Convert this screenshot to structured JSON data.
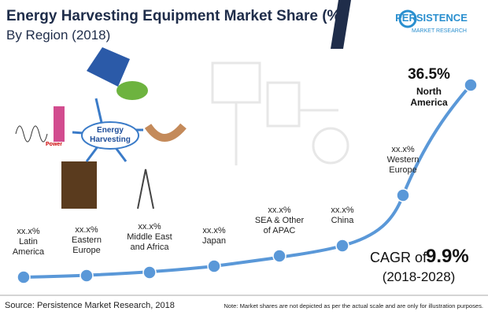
{
  "header": {
    "title": "Energy Harvesting Equipment Market Share (%)",
    "subtitle": "By Region (2018)"
  },
  "logo": {
    "name": "PERSISTENCE",
    "tagline": "MARKET RESEARCH"
  },
  "diagram": {
    "center": [
      "Energy",
      "Harvesting"
    ],
    "power": "Power"
  },
  "regions": [
    {
      "share": "xx.x%",
      "name": [
        "Latin",
        "America"
      ]
    },
    {
      "share": "xx.x%",
      "name": [
        "Eastern",
        "Europe"
      ]
    },
    {
      "share": "xx.x%",
      "name": [
        "Middle East",
        "and Africa"
      ]
    },
    {
      "share": "xx.x%",
      "name": [
        "Japan"
      ]
    },
    {
      "share": "xx.x%",
      "name": [
        "SEA & Other",
        "of APAC"
      ]
    },
    {
      "share": "xx.x%",
      "name": [
        "China"
      ]
    },
    {
      "share": "xx.x%",
      "name": [
        "Western",
        "Europe"
      ]
    },
    {
      "share": "36.5%",
      "name": [
        "North",
        "America"
      ]
    }
  ],
  "cagr": {
    "prefix": "CAGR of",
    "value": "9.9%",
    "period": "(2018-2028)"
  },
  "footer": {
    "source": "Source: Persistence Market Research, 2018",
    "note": "Note: Market shares are not depicted as per the actual scale and are only for illustration purposes."
  }
}
